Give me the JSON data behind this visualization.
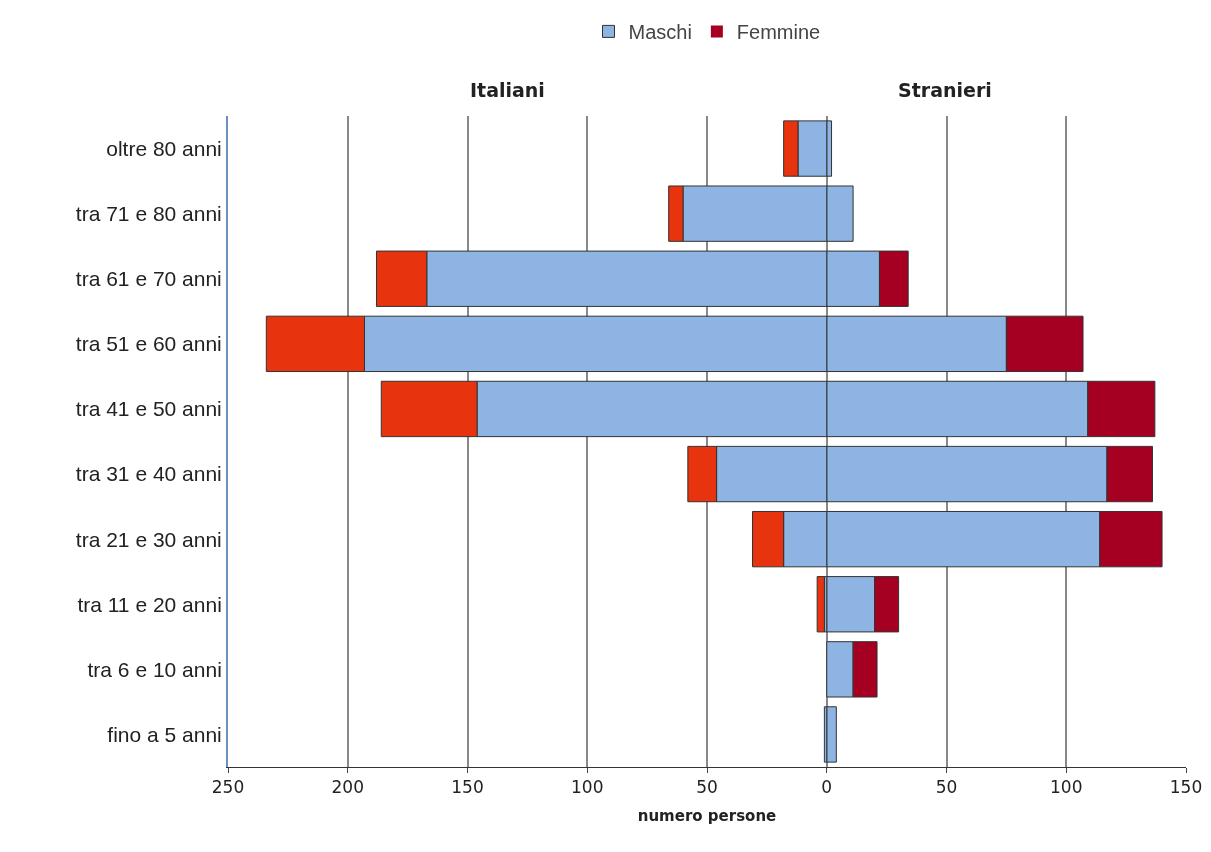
{
  "chart_data": {
    "type": "bar",
    "orientation": "horizontal",
    "stacked": true,
    "categories": [
      "oltre 80 anni",
      "tra 71 e 80 anni",
      "tra 61 e 70 anni",
      "tra 51 e 60 anni",
      "tra 41 e 50 anni",
      "tra 31 e 40 anni",
      "tra 21 e 30 anni",
      "tra 11 e 20 anni",
      "tra 6 e 10 anni",
      "fino a 5 anni"
    ],
    "series": [
      {
        "name": "Maschi",
        "color": "#8db4e2",
        "values": [
          2,
          11,
          22,
          75,
          109,
          117,
          114,
          20,
          11,
          4
        ]
      },
      {
        "name": "Femmine",
        "color": "#a50021",
        "values": [
          0,
          0,
          12,
          32,
          28,
          19,
          26,
          10,
          10,
          0
        ]
      },
      {
        "color": "#8db4e2",
        "values": [
          -12,
          -60,
          -167,
          -193,
          -146,
          -46,
          -18,
          -1,
          0,
          -1
        ]
      },
      {
        "color": "#e8330f",
        "values": [
          -6,
          -6,
          -21,
          -41,
          -40,
          -12,
          -13,
          -3,
          0,
          0
        ]
      }
    ],
    "xlim": [
      -250,
      150
    ],
    "xticks": [
      {
        "value": -250,
        "label": "250"
      },
      {
        "value": -200,
        "label": "200"
      },
      {
        "value": -150,
        "label": "150"
      },
      {
        "value": -100,
        "label": "100"
      },
      {
        "value": -50,
        "label": "50"
      },
      0,
      50,
      100,
      150
    ],
    "xlabel": "numero persone",
    "annotations": [
      "Italiani",
      "Stranieri"
    ],
    "grid": "x",
    "legend": "top"
  }
}
